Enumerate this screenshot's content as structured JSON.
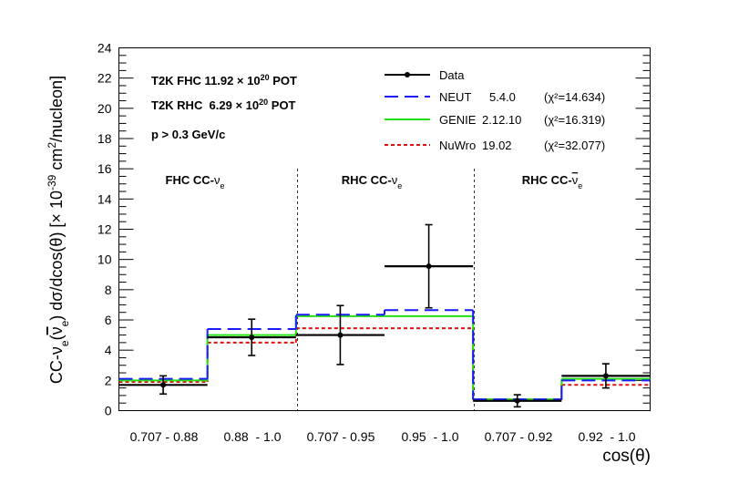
{
  "chart_data": {
    "type": "histogram",
    "ylabel": "CC-νe(ν̄e) dσ/dcos(θ) [× 10^-39 cm²/nucleon]",
    "ylabel_parts": {
      "p1": "CC-ν",
      "p1sub": "e",
      "p2": "(",
      "p2bar": "ν",
      "p2sub": "e",
      "p3": ") dσ/dcos(θ) [× 10",
      "p3sup": "-39",
      "p4": " cm",
      "p4sup": "2",
      "p5": "/nucleon]"
    },
    "xlabel": "cos(θ)",
    "ylim": [
      0,
      24
    ],
    "yticks": [
      "0",
      "2",
      "4",
      "6",
      "8",
      "10",
      "12",
      "14",
      "16",
      "18",
      "20",
      "22",
      "24"
    ],
    "bins": [
      {
        "label": "0.707 - 0.88"
      },
      {
        "label": "0.88  - 1.0"
      },
      {
        "label": "0.707 - 0.95"
      },
      {
        "label": "0.95  - 1.0"
      },
      {
        "label": "0.707 - 0.92"
      },
      {
        "label": "0.92  - 1.0"
      }
    ],
    "series": [
      {
        "name": "NEUT",
        "version": "5.4.0",
        "chi2": "(χ²=14.634)",
        "color": "#1a1aff",
        "dash": "long-dash",
        "values": [
          2.1,
          5.4,
          6.35,
          6.65,
          0.75,
          2.0
        ]
      },
      {
        "name": "GENIE",
        "version": "2.12.10",
        "chi2": "(χ²=16.319)",
        "color": "#22e010",
        "dash": "solid",
        "values": [
          2.0,
          5.0,
          6.25,
          6.25,
          0.75,
          2.1
        ]
      },
      {
        "name": "NuWro",
        "version": "19.02",
        "chi2": "(χ²=32.077)",
        "color": "#e01010",
        "dash": "dotted",
        "values": [
          1.9,
          4.5,
          5.45,
          5.45,
          0.7,
          1.7
        ]
      }
    ],
    "data": {
      "name": "Data",
      "color": "#000000",
      "values": [
        1.7,
        4.85,
        5.0,
        9.55,
        0.65,
        2.3
      ],
      "errors": [
        0.6,
        1.2,
        1.95,
        2.75,
        0.4,
        0.8
      ]
    },
    "region_labels": [
      {
        "text": "FHC CC-",
        "nu": "ν",
        "sub": "e",
        "bar": false
      },
      {
        "text": "RHC CC-",
        "nu": "ν",
        "sub": "e",
        "bar": false
      },
      {
        "text": "RHC CC-",
        "nu": "ν",
        "sub": "e",
        "bar": true
      }
    ],
    "annotations": [
      {
        "pre": "T2K FHC 11.92 × 10",
        "sup": "20",
        "post": " POT"
      },
      {
        "pre": "T2K RHC  6.29 × 10",
        "sup": "20",
        "post": " POT"
      },
      {
        "pre": "p > 0.3 GeV/c",
        "sup": "",
        "post": ""
      }
    ]
  }
}
